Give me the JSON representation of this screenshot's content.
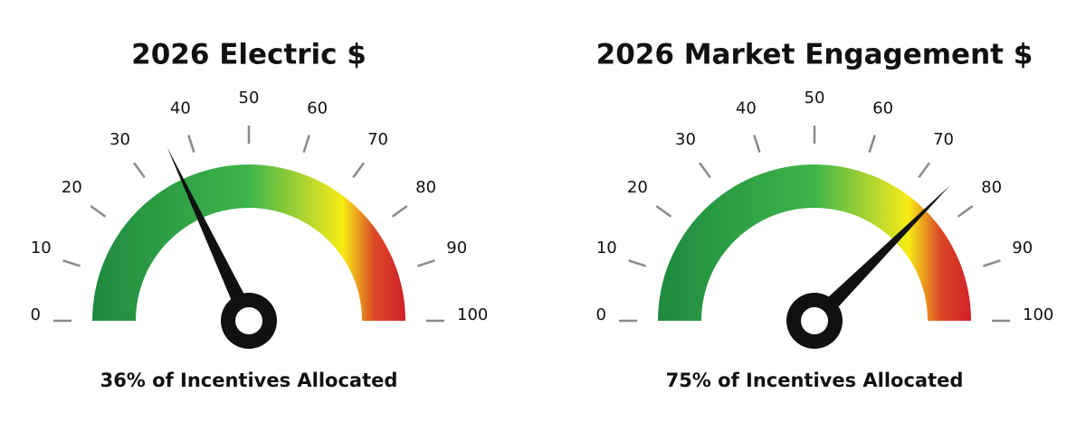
{
  "chart_data": [
    {
      "type": "gauge",
      "title": "2026 Electric $",
      "value": 36,
      "caption": "36% of Incentives Allocated",
      "lim": [
        0,
        100
      ],
      "ticks": [
        0,
        10,
        20,
        30,
        40,
        50,
        60,
        70,
        80,
        90,
        100
      ]
    },
    {
      "type": "gauge",
      "title": "2026 Market Engagement $",
      "value": 75,
      "caption": "75% of Incentives Allocated",
      "lim": [
        0,
        100
      ],
      "ticks": [
        0,
        10,
        20,
        30,
        40,
        50,
        60,
        70,
        80,
        90,
        100
      ]
    }
  ]
}
